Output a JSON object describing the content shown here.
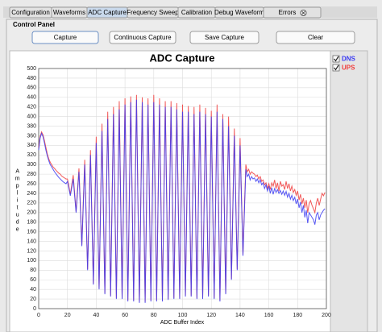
{
  "tabs": [
    "Configuration",
    "Waveforms",
    "ADC Capture",
    "Frequency Sweep",
    "Calibration",
    "Debug Waveform",
    "Errors"
  ],
  "control_panel": {
    "title": "Control Panel",
    "buttons": [
      "Capture",
      "Continuous Capture",
      "Save Capture",
      "Clear"
    ]
  },
  "chart_data": {
    "type": "line",
    "title": "ADC Capture",
    "x_label": "ADC Buffer Index",
    "y_label": "Amplitude",
    "legend": "right",
    "grid": true,
    "xlim": [
      0,
      200
    ],
    "xticks": [
      0,
      20,
      40,
      60,
      80,
      100,
      120,
      140,
      160,
      180,
      200
    ],
    "ylim": [
      0,
      500
    ],
    "yticks": [
      0,
      20,
      40,
      60,
      80,
      100,
      120,
      140,
      160,
      180,
      200,
      220,
      240,
      260,
      280,
      300,
      320,
      340,
      360,
      380,
      400,
      420,
      440,
      460,
      480,
      500
    ],
    "x": [
      0,
      1,
      2,
      3,
      4,
      5,
      6,
      7,
      8,
      9,
      10,
      11,
      12,
      13,
      14,
      15,
      16,
      17,
      18,
      19,
      20,
      21,
      22,
      23,
      24,
      25,
      26,
      27,
      28,
      29,
      30,
      31,
      32,
      33,
      34,
      35,
      36,
      37,
      38,
      39,
      40,
      41,
      42,
      43,
      44,
      45,
      46,
      47,
      48,
      49,
      50,
      51,
      52,
      53,
      54,
      55,
      56,
      57,
      58,
      59,
      60,
      61,
      62,
      63,
      64,
      65,
      66,
      67,
      68,
      69,
      70,
      71,
      72,
      73,
      74,
      75,
      76,
      77,
      78,
      79,
      80,
      81,
      82,
      83,
      84,
      85,
      86,
      87,
      88,
      89,
      90,
      91,
      92,
      93,
      94,
      95,
      96,
      97,
      98,
      99,
      100,
      101,
      102,
      103,
      104,
      105,
      106,
      107,
      108,
      109,
      110,
      111,
      112,
      113,
      114,
      115,
      116,
      117,
      118,
      119,
      120,
      121,
      122,
      123,
      124,
      125,
      126,
      127,
      128,
      129,
      130,
      131,
      132,
      133,
      134,
      135,
      136,
      137,
      138,
      139,
      140,
      141,
      142,
      143,
      144,
      145,
      146,
      147,
      148,
      149,
      150,
      151,
      152,
      153,
      154,
      155,
      156,
      157,
      158,
      159,
      160,
      161,
      162,
      163,
      164,
      165,
      166,
      167,
      168,
      169,
      170,
      171,
      172,
      173,
      174,
      175,
      176,
      177,
      178,
      179,
      180,
      181,
      182,
      183,
      184,
      185,
      186,
      187,
      188,
      189,
      190,
      191,
      192,
      193,
      194,
      195,
      196,
      197,
      198,
      199
    ],
    "series": [
      {
        "name": "UPS",
        "color": "#f03c3c",
        "values": [
          335,
          358,
          368,
          362,
          350,
          336,
          322,
          312,
          305,
          300,
          295,
          292,
          288,
          285,
          282,
          280,
          276,
          274,
          272,
          270,
          270,
          255,
          238,
          258,
          278,
          240,
          202,
          248,
          292,
          212,
          132,
          222,
          310,
          196,
          82,
          206,
          330,
          190,
          52,
          206,
          358,
          200,
          42,
          213,
          385,
          208,
          32,
          224,
          410,
          220,
          27,
          227,
          420,
          224,
          22,
          233,
          432,
          228,
          22,
          236,
          438,
          232,
          17,
          235,
          442,
          230,
          17,
          237,
          445,
          232,
          14,
          230,
          440,
          230,
          14,
          228,
          438,
          228,
          17,
          234,
          445,
          232,
          17,
          230,
          438,
          228,
          17,
          228,
          432,
          228,
          20,
          229,
          432,
          230,
          22,
          228,
          428,
          228,
          22,
          225,
          425,
          228,
          27,
          228,
          422,
          226,
          27,
          227,
          420,
          222,
          22,
          226,
          425,
          225,
          22,
          222,
          418,
          222,
          27,
          222,
          412,
          220,
          22,
          227,
          425,
          222,
          17,
          214,
          405,
          220,
          32,
          222,
          400,
          230,
          62,
          220,
          375,
          228,
          82,
          218,
          355,
          232,
          112,
          210,
          300,
          285,
          290,
          280,
          285,
          282,
          280,
          275,
          278,
          270,
          275,
          265,
          268,
          258,
          262,
          250,
          260,
          248,
          262,
          255,
          268,
          250,
          262,
          245,
          265,
          255,
          258,
          248,
          265,
          250,
          260,
          245,
          255,
          242,
          248,
          236,
          245,
          226,
          238,
          218,
          230,
          210,
          226,
          200,
          218,
          225,
          215,
          208,
          200,
          220,
          230,
          215,
          228,
          240,
          235,
          242
        ]
      },
      {
        "name": "DNS",
        "color": "#3b3bf2",
        "values": [
          330,
          355,
          365,
          358,
          345,
          330,
          318,
          308,
          300,
          295,
          290,
          285,
          281,
          277,
          273,
          270,
          267,
          264,
          262,
          260,
          265,
          250,
          235,
          252,
          270,
          235,
          200,
          242,
          285,
          208,
          130,
          215,
          300,
          190,
          80,
          200,
          320,
          185,
          50,
          198,
          345,
          192,
          40,
          205,
          370,
          200,
          30,
          212,
          395,
          210,
          25,
          215,
          405,
          212,
          20,
          218,
          415,
          218,
          20,
          222,
          425,
          220,
          15,
          222,
          430,
          222,
          15,
          225,
          435,
          224,
          12,
          221,
          430,
          221,
          12,
          218,
          425,
          220,
          15,
          222,
          430,
          222,
          15,
          220,
          425,
          220,
          15,
          218,
          420,
          219,
          18,
          219,
          420,
          220,
          20,
          218,
          415,
          218,
          20,
          215,
          410,
          218,
          25,
          218,
          410,
          218,
          25,
          215,
          405,
          212,
          20,
          215,
          410,
          215,
          20,
          212,
          405,
          215,
          25,
          212,
          400,
          210,
          20,
          215,
          410,
          212,
          15,
          205,
          395,
          212,
          30,
          205,
          380,
          220,
          60,
          210,
          360,
          220,
          80,
          210,
          340,
          225,
          110,
          200,
          290,
          275,
          280,
          268,
          275,
          270,
          272,
          265,
          270,
          262,
          268,
          258,
          262,
          250,
          258,
          245,
          255,
          240,
          252,
          238,
          250,
          242,
          248,
          240,
          246,
          238,
          245,
          236,
          244,
          232,
          240,
          228,
          236,
          225,
          232,
          218,
          228,
          210,
          222,
          200,
          215,
          190,
          205,
          178,
          200,
          195,
          190,
          185,
          175,
          195,
          200,
          185,
          195,
          200,
          205,
          208
        ]
      }
    ]
  }
}
